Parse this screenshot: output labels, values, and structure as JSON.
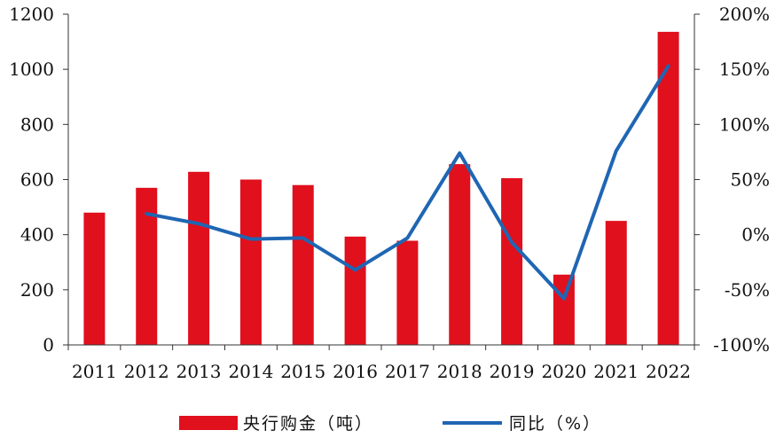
{
  "chart_data": {
    "type": "bar+line",
    "categories": [
      "2011",
      "2012",
      "2013",
      "2014",
      "2015",
      "2016",
      "2017",
      "2018",
      "2019",
      "2020",
      "2021",
      "2022"
    ],
    "series": [
      {
        "name": "央行购金（吨）",
        "type": "bar",
        "axis": "left",
        "color": "#e0101d",
        "values": [
          480,
          570,
          628,
          600,
          580,
          393,
          378,
          656,
          605,
          255,
          450,
          1136
        ]
      },
      {
        "name": "同比（%）",
        "type": "line",
        "axis": "right",
        "color": "#1f66b3",
        "values": [
          null,
          19,
          10,
          -4,
          -3,
          -32,
          -3,
          74,
          -7,
          -58,
          76,
          153
        ]
      }
    ],
    "y_left": {
      "min": 0,
      "max": 1200,
      "ticks": [
        "0",
        "200",
        "400",
        "600",
        "800",
        "1000",
        "1200"
      ]
    },
    "y_right": {
      "min": -100,
      "max": 200,
      "ticks": [
        "-100%",
        "-50%",
        "0%",
        "50%",
        "100%",
        "150%",
        "200%"
      ]
    },
    "grid": false,
    "legend_position": "bottom"
  }
}
